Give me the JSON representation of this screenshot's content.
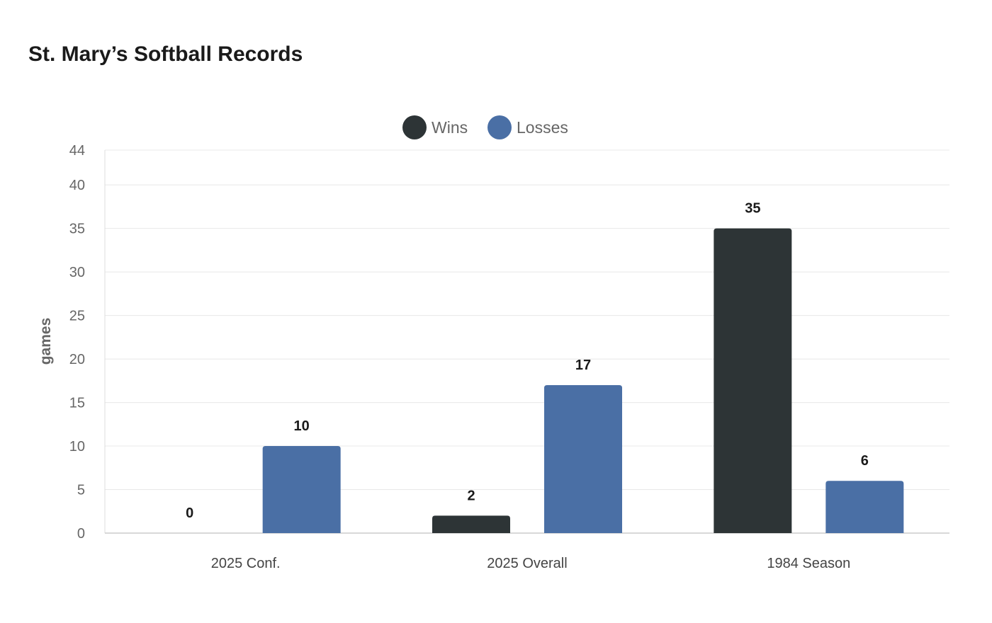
{
  "chart_data": {
    "type": "bar",
    "title": "St. Mary’s Softball Records",
    "xlabel": "",
    "ylabel": "games",
    "ylim": [
      0,
      44
    ],
    "yticks": [
      0,
      5,
      10,
      15,
      20,
      25,
      30,
      35,
      40,
      44
    ],
    "grid": true,
    "legend_position": "top-center",
    "categories": [
      "2025 Conf.",
      "2025 Overall",
      "1984 Season"
    ],
    "series": [
      {
        "name": "Wins",
        "color": "#2d3436",
        "values": [
          0,
          2,
          35
        ]
      },
      {
        "name": "Losses",
        "color": "#4a6fa5",
        "values": [
          10,
          17,
          6
        ]
      }
    ],
    "data_labels": true
  }
}
